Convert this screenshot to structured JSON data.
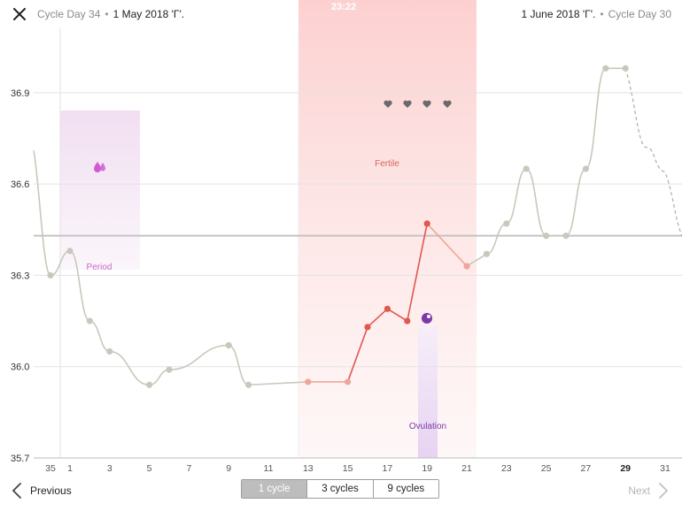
{
  "header": {
    "left_day": "Cycle Day 34",
    "left_date": "1 May 2018 'Γ'.",
    "right_date": "1 June 2018 'Γ'.",
    "right_day": "Cycle Day 30",
    "status_time": "23:22",
    "close_icon": "close-icon"
  },
  "chart_data": {
    "type": "line",
    "ylim": [
      35.7,
      37.1
    ],
    "yticks": [
      "36.9",
      "36.6",
      "36.3",
      "36.0",
      "35.7"
    ],
    "xticks": [
      "35",
      "1",
      "3",
      "5",
      "7",
      "9",
      "11",
      "13",
      "15",
      "17",
      "19",
      "21",
      "23",
      "25",
      "27",
      "29",
      "31"
    ],
    "coverline": 36.43,
    "regions": {
      "period_label": "Period",
      "fertile_label": "Fertile",
      "ovulation_label": "Ovulation"
    },
    "series": [
      {
        "x": [
          35,
          1,
          2,
          3,
          5,
          6,
          9,
          10,
          13,
          15,
          16,
          17,
          18,
          19,
          21,
          22,
          23,
          24,
          25,
          26,
          27,
          28,
          29
        ],
        "y": [
          36.3,
          36.38,
          36.15,
          36.05,
          35.94,
          35.99,
          36.07,
          35.94,
          35.95,
          35.95,
          36.13,
          36.19,
          36.15,
          36.47,
          36.33,
          36.37,
          36.47,
          36.65,
          36.43,
          36.43,
          36.65,
          36.98,
          36.98
        ]
      }
    ],
    "colors": {
      "normal": "#c8c8bc",
      "fertile": "#e0584f",
      "fertile_light": "#efa69a",
      "period": "#d05bd0",
      "ovulation": "#7a3aa8"
    }
  },
  "footer": {
    "previous": "Previous",
    "next": "Next",
    "segments": [
      "1 cycle",
      "3 cycles",
      "9 cycles"
    ],
    "active_segment": 0
  }
}
